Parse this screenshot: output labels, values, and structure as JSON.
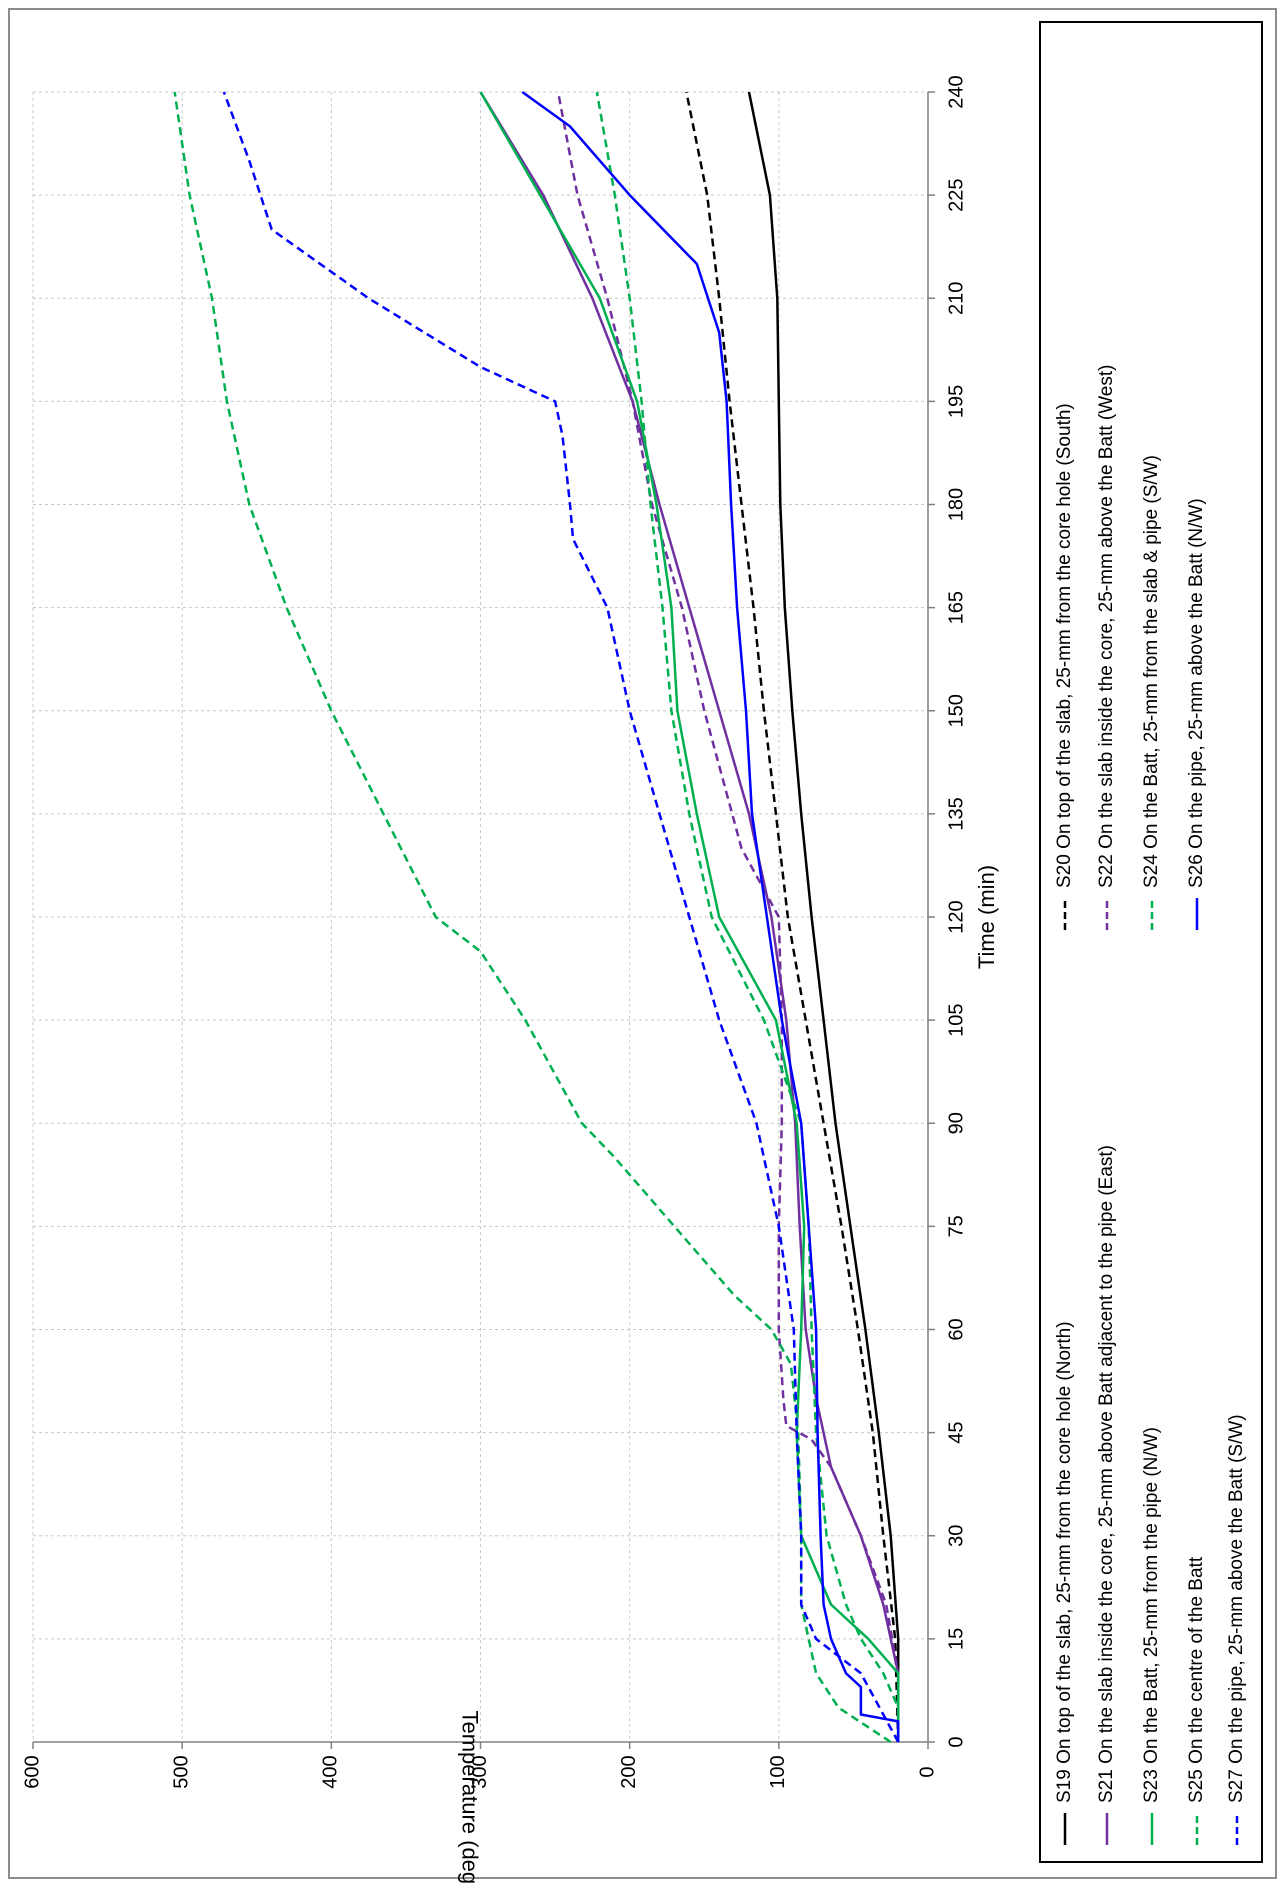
{
  "chart_data": {
    "type": "line",
    "orientation": "rotated 90 degrees counter-clockwise",
    "xlabel": "Time (min)",
    "ylabel": "Temperature (deg C)",
    "xlim": [
      0,
      240
    ],
    "ylim": [
      0,
      600
    ],
    "x_ticks": [
      "0",
      "15",
      "30",
      "45",
      "60",
      "75",
      "90",
      "105",
      "120",
      "135",
      "150",
      "165",
      "180",
      "195",
      "210",
      "225",
      "240"
    ],
    "y_ticks": [
      "0",
      "100",
      "200",
      "300",
      "400",
      "500",
      "600"
    ],
    "grid": true,
    "legend_placement": "right",
    "series": [
      {
        "name": "S19 On top of the slab, 25-mm  from the core hole (North)",
        "color": "#000000",
        "dash": "solid",
        "points": [
          [
            0,
            20
          ],
          [
            15,
            20
          ],
          [
            30,
            25
          ],
          [
            45,
            33
          ],
          [
            60,
            42
          ],
          [
            75,
            52
          ],
          [
            90,
            62
          ],
          [
            105,
            70
          ],
          [
            120,
            78
          ],
          [
            135,
            85
          ],
          [
            150,
            91
          ],
          [
            165,
            96
          ],
          [
            180,
            99
          ],
          [
            195,
            100
          ],
          [
            210,
            101
          ],
          [
            225,
            106
          ],
          [
            240,
            120
          ]
        ]
      },
      {
        "name": "S20 On top of the slab, 25-mm from the core hole (South)",
        "color": "#000000",
        "dash": "dashed",
        "points": [
          [
            0,
            20
          ],
          [
            15,
            22
          ],
          [
            30,
            30
          ],
          [
            45,
            37
          ],
          [
            60,
            47
          ],
          [
            75,
            58
          ],
          [
            90,
            70
          ],
          [
            105,
            82
          ],
          [
            120,
            94
          ],
          [
            135,
            102
          ],
          [
            150,
            110
          ],
          [
            165,
            117
          ],
          [
            180,
            125
          ],
          [
            195,
            133
          ],
          [
            210,
            140
          ],
          [
            225,
            148
          ],
          [
            240,
            162
          ]
        ]
      },
      {
        "name": "S21 On the slab inside the core, 25-mm above Batt adjacent to the pipe (East)",
        "color": "#7030a0",
        "dash": "solid",
        "points": [
          [
            0,
            20
          ],
          [
            10,
            20
          ],
          [
            20,
            30
          ],
          [
            30,
            45
          ],
          [
            40,
            65
          ],
          [
            50,
            75
          ],
          [
            60,
            82
          ],
          [
            75,
            86
          ],
          [
            90,
            89
          ],
          [
            105,
            95
          ],
          [
            120,
            105
          ],
          [
            135,
            120
          ],
          [
            150,
            140
          ],
          [
            165,
            160
          ],
          [
            180,
            180
          ],
          [
            195,
            198
          ],
          [
            210,
            225
          ],
          [
            225,
            258
          ],
          [
            240,
            300
          ]
        ]
      },
      {
        "name": "S22 On the slab inside the core, 25-mm above the Batt (West)",
        "color": "#7030a0",
        "dash": "dashed",
        "points": [
          [
            0,
            20
          ],
          [
            10,
            20
          ],
          [
            20,
            28
          ],
          [
            30,
            45
          ],
          [
            40,
            65
          ],
          [
            44,
            78
          ],
          [
            46,
            95
          ],
          [
            50,
            97
          ],
          [
            60,
            100
          ],
          [
            75,
            100
          ],
          [
            90,
            98
          ],
          [
            105,
            98
          ],
          [
            120,
            100
          ],
          [
            130,
            125
          ],
          [
            150,
            150
          ],
          [
            165,
            165
          ],
          [
            180,
            185
          ],
          [
            195,
            198
          ],
          [
            210,
            215
          ],
          [
            225,
            235
          ],
          [
            240,
            248
          ]
        ]
      },
      {
        "name": "S23 On the Batt, 25-mm from the pipe (N/W)",
        "color": "#00b050",
        "dash": "solid",
        "points": [
          [
            0,
            20
          ],
          [
            10,
            20
          ],
          [
            15,
            40
          ],
          [
            20,
            65
          ],
          [
            30,
            85
          ],
          [
            45,
            88
          ],
          [
            60,
            85
          ],
          [
            75,
            83
          ],
          [
            90,
            88
          ],
          [
            105,
            102
          ],
          [
            120,
            140
          ],
          [
            135,
            155
          ],
          [
            150,
            168
          ],
          [
            165,
            172
          ],
          [
            180,
            182
          ],
          [
            195,
            195
          ],
          [
            210,
            220
          ],
          [
            225,
            260
          ],
          [
            240,
            300
          ]
        ]
      },
      {
        "name": "S24 On the Batt, 25-mm from the slab & pipe (S/W)",
        "color": "#00b050",
        "dash": "dashed",
        "points": [
          [
            0,
            20
          ],
          [
            5,
            20
          ],
          [
            10,
            30
          ],
          [
            15,
            45
          ],
          [
            20,
            55
          ],
          [
            30,
            68
          ],
          [
            45,
            75
          ],
          [
            60,
            78
          ],
          [
            75,
            80
          ],
          [
            90,
            85
          ],
          [
            105,
            110
          ],
          [
            120,
            145
          ],
          [
            135,
            160
          ],
          [
            150,
            172
          ],
          [
            165,
            178
          ],
          [
            180,
            186
          ],
          [
            195,
            192
          ],
          [
            210,
            200
          ],
          [
            225,
            210
          ],
          [
            240,
            222
          ]
        ]
      },
      {
        "name": "S25 On the centre of the Batt",
        "color": "#00b050",
        "dash": "dashed",
        "points": [
          [
            0,
            25
          ],
          [
            5,
            60
          ],
          [
            10,
            75
          ],
          [
            20,
            85
          ],
          [
            30,
            85
          ],
          [
            45,
            87
          ],
          [
            55,
            92
          ],
          [
            60,
            105
          ],
          [
            65,
            130
          ],
          [
            75,
            170
          ],
          [
            85,
            210
          ],
          [
            90,
            232
          ],
          [
            105,
            270
          ],
          [
            115,
            300
          ],
          [
            120,
            330
          ],
          [
            135,
            365
          ],
          [
            150,
            400
          ],
          [
            165,
            430
          ],
          [
            180,
            455
          ],
          [
            195,
            470
          ],
          [
            210,
            480
          ],
          [
            225,
            495
          ],
          [
            240,
            505
          ]
        ]
      },
      {
        "name": "S26 On the pipe, 25-mm above the Batt (N/W)",
        "color": "#0000ff",
        "dash": "solid",
        "points": [
          [
            0,
            20
          ],
          [
            3,
            20
          ],
          [
            4,
            45
          ],
          [
            8,
            45
          ],
          [
            10,
            55
          ],
          [
            15,
            65
          ],
          [
            20,
            70
          ],
          [
            30,
            72
          ],
          [
            45,
            74
          ],
          [
            60,
            75
          ],
          [
            75,
            80
          ],
          [
            90,
            85
          ],
          [
            105,
            98
          ],
          [
            120,
            108
          ],
          [
            135,
            118
          ],
          [
            150,
            122
          ],
          [
            165,
            128
          ],
          [
            180,
            132
          ],
          [
            195,
            135
          ],
          [
            205,
            140
          ],
          [
            215,
            155
          ],
          [
            225,
            200
          ],
          [
            235,
            240
          ],
          [
            240,
            272
          ]
        ]
      },
      {
        "name": "S27 On the pipe, 25-mm above the Batt (S/W)",
        "color": "#0000ff",
        "dash": "dashed",
        "points": [
          [
            0,
            20
          ],
          [
            4,
            30
          ],
          [
            10,
            45
          ],
          [
            15,
            75
          ],
          [
            20,
            85
          ],
          [
            30,
            85
          ],
          [
            45,
            88
          ],
          [
            60,
            90
          ],
          [
            75,
            100
          ],
          [
            90,
            115
          ],
          [
            105,
            140
          ],
          [
            120,
            160
          ],
          [
            135,
            180
          ],
          [
            150,
            200
          ],
          [
            165,
            215
          ],
          [
            175,
            238
          ],
          [
            180,
            240
          ],
          [
            190,
            245
          ],
          [
            195,
            250
          ],
          [
            200,
            300
          ],
          [
            210,
            375
          ],
          [
            220,
            440
          ],
          [
            230,
            455
          ],
          [
            240,
            472
          ]
        ]
      }
    ]
  }
}
